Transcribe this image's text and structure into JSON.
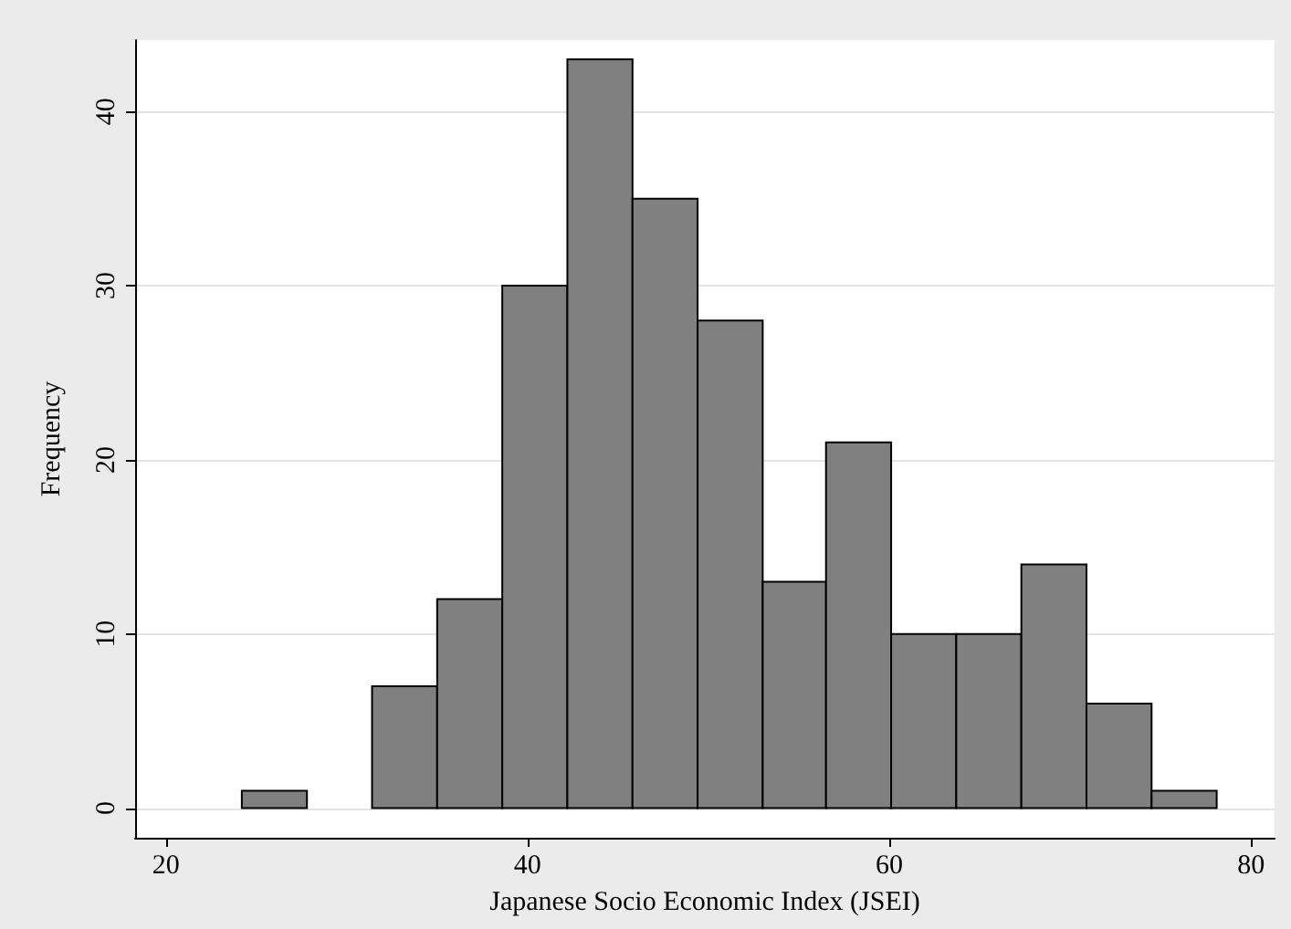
{
  "chart_data": {
    "type": "histogram",
    "xlabel": "Japanese Socio Economic Index (JSEI)",
    "ylabel": "Frequency",
    "bins": [
      24.2,
      27.8,
      31.4,
      35,
      38.6,
      42.2,
      45.8,
      49.4,
      53,
      56.5,
      60.1,
      63.7,
      67.3,
      70.9,
      74.5,
      78.1
    ],
    "values": [
      1,
      0,
      7,
      12,
      30,
      43,
      35,
      28,
      13,
      21,
      10,
      10,
      14,
      6,
      1
    ],
    "color": "#808080",
    "xlim": [
      18.3,
      81.3
    ],
    "xticks": [
      20,
      40,
      60,
      80
    ],
    "ylim": [
      -1.7,
      44.1
    ],
    "yticks": [
      0,
      10,
      20,
      30,
      40
    ],
    "grid": "y"
  }
}
